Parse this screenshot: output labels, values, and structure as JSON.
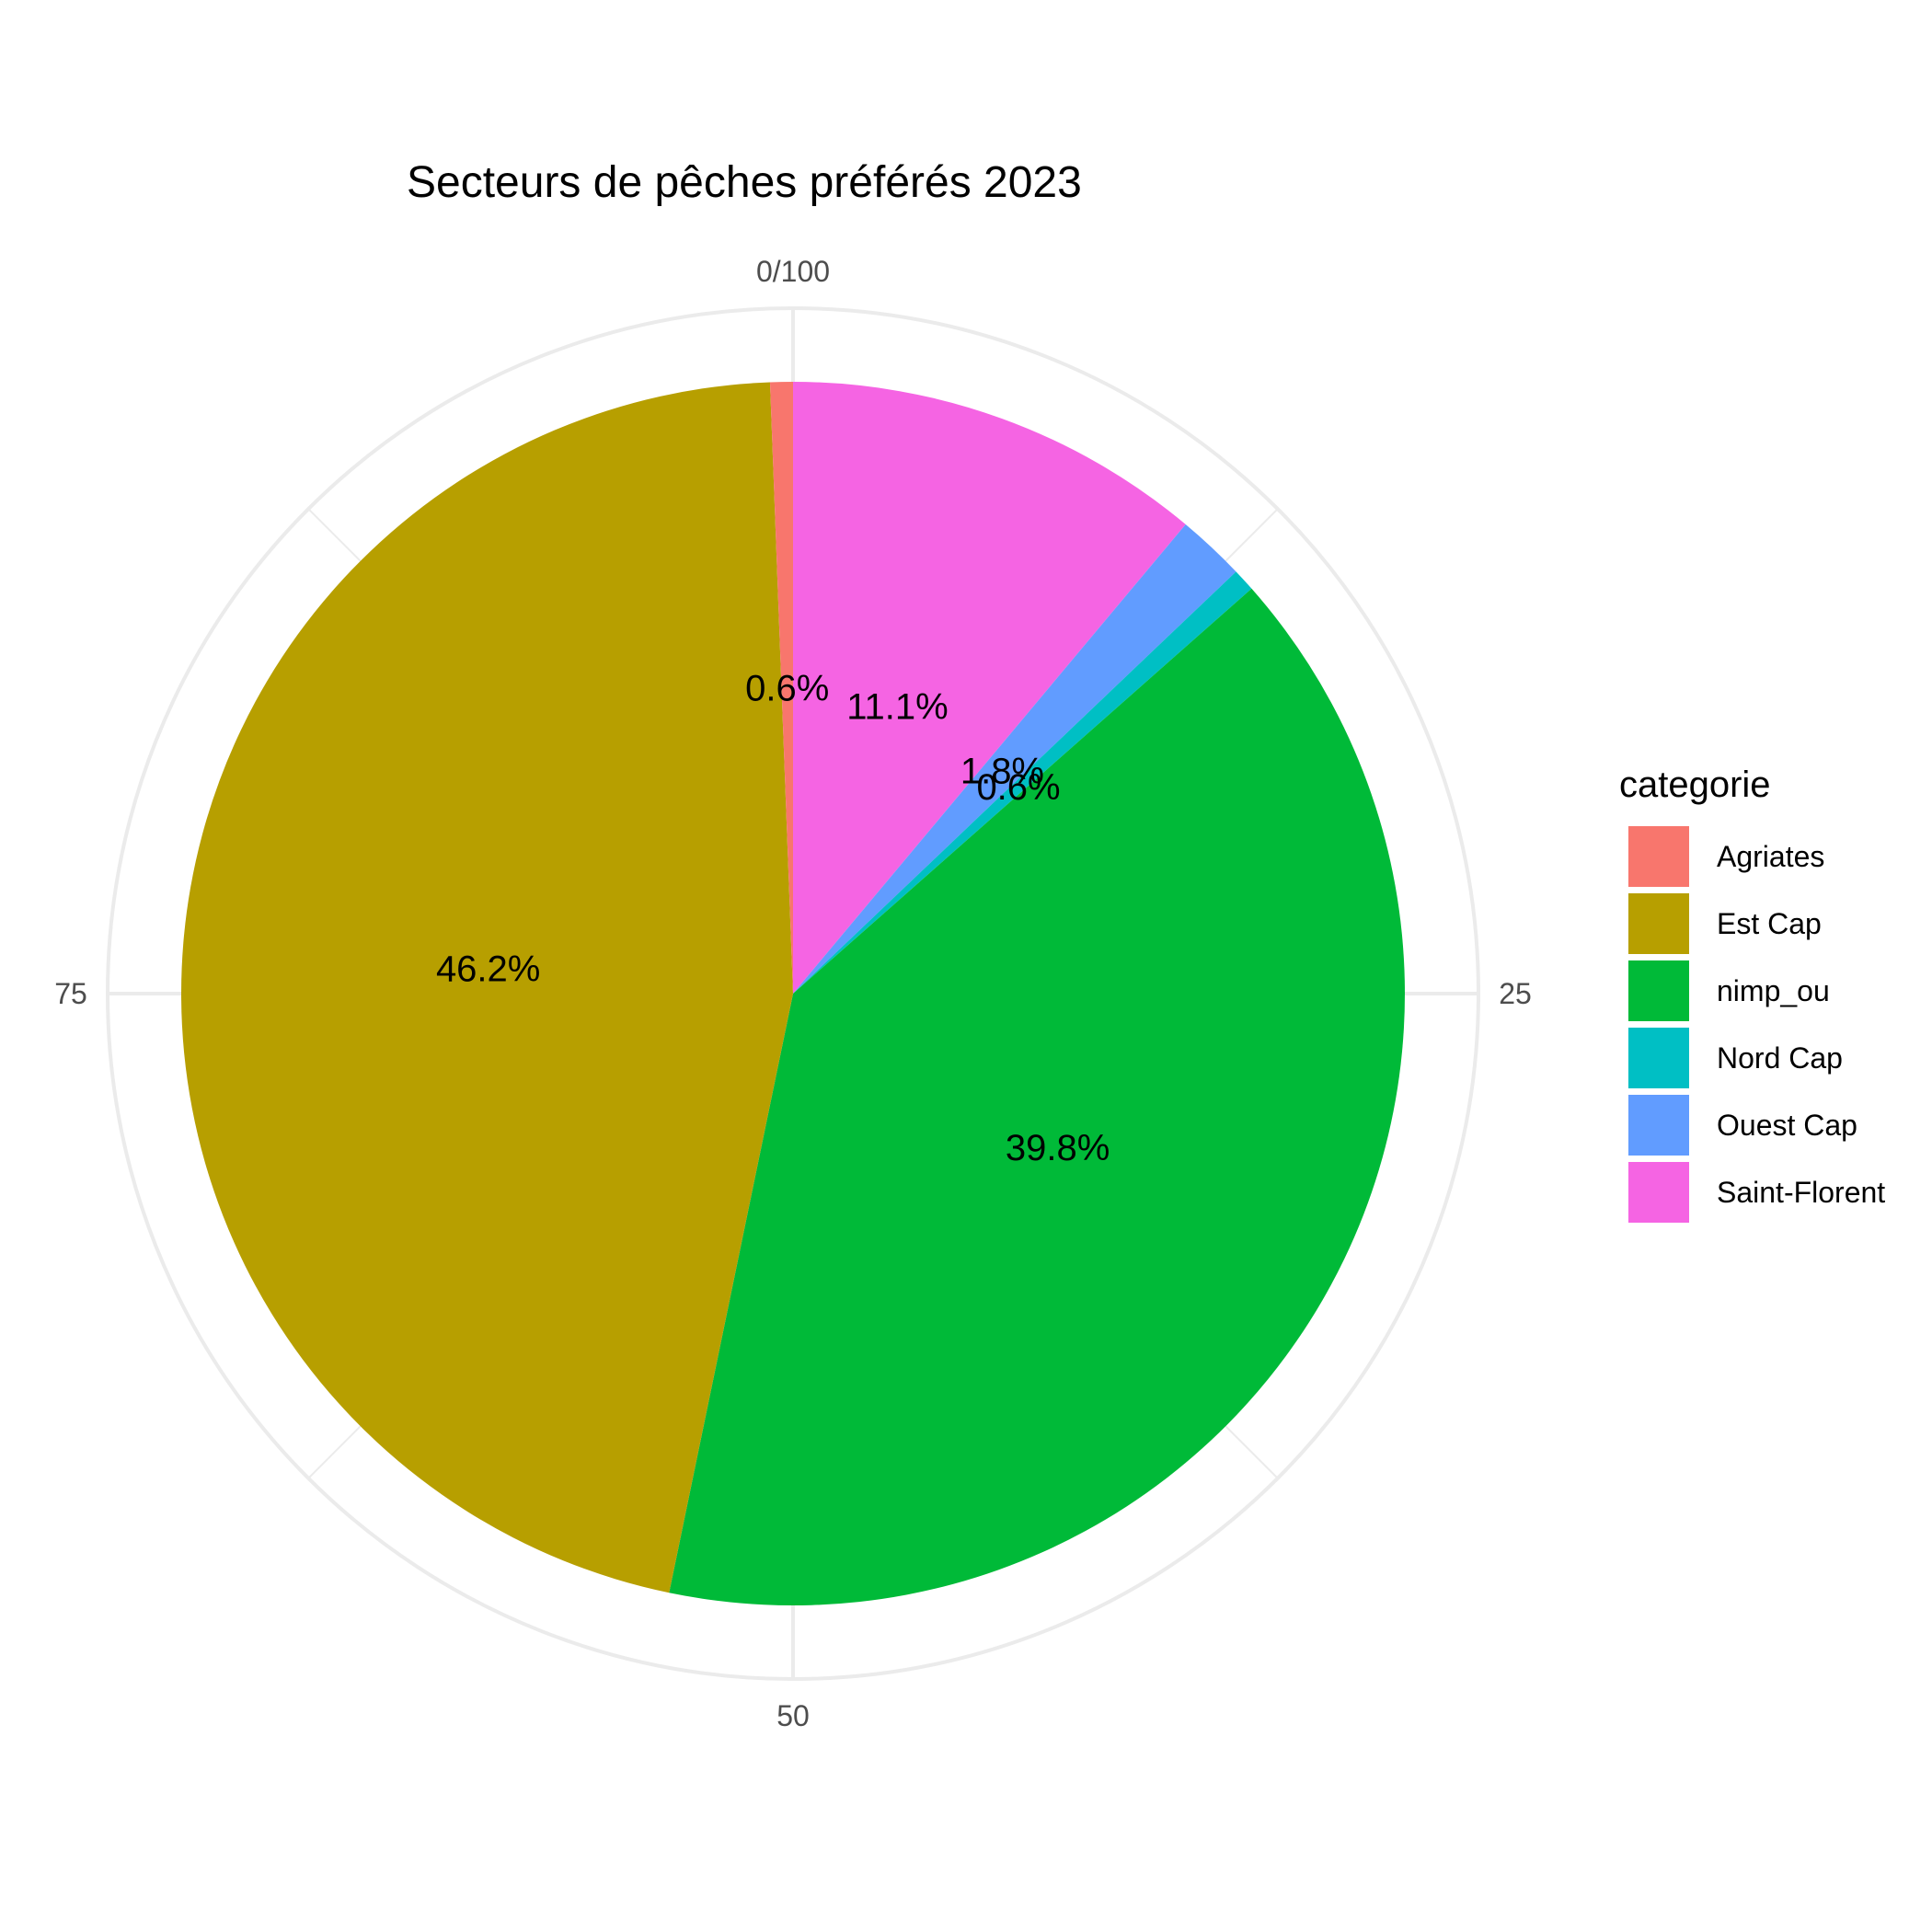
{
  "chart_data": {
    "type": "pie",
    "title": "Secteurs de pêches préférés 2023",
    "legend_title": "categorie",
    "legend_position": "right",
    "categories": [
      "Agriates",
      "Est Cap",
      "nimp_ou",
      "Nord Cap",
      "Ouest Cap",
      "Saint-Florent"
    ],
    "values": [
      0.6,
      46.2,
      39.8,
      0.6,
      1.8,
      11.1
    ],
    "labels": [
      "0.6%",
      "46.2%",
      "39.8%",
      "0.6%",
      "1.8%",
      "11.1%"
    ],
    "colors": [
      "#F8766D",
      "#B79F00",
      "#00BA38",
      "#00BFC4",
      "#619CFF",
      "#F564E3"
    ],
    "drawing_order": [
      "Saint-Florent",
      "Ouest Cap",
      "Nord Cap",
      "nimp_ou",
      "Est Cap",
      "Agriates"
    ],
    "angular_axis": {
      "range": [
        0,
        100
      ],
      "ticks": [
        {
          "value": 0,
          "label": "0/100"
        },
        {
          "value": 25,
          "label": "25"
        },
        {
          "value": 50,
          "label": "50"
        },
        {
          "value": 75,
          "label": "75"
        }
      ]
    },
    "grid": true
  }
}
